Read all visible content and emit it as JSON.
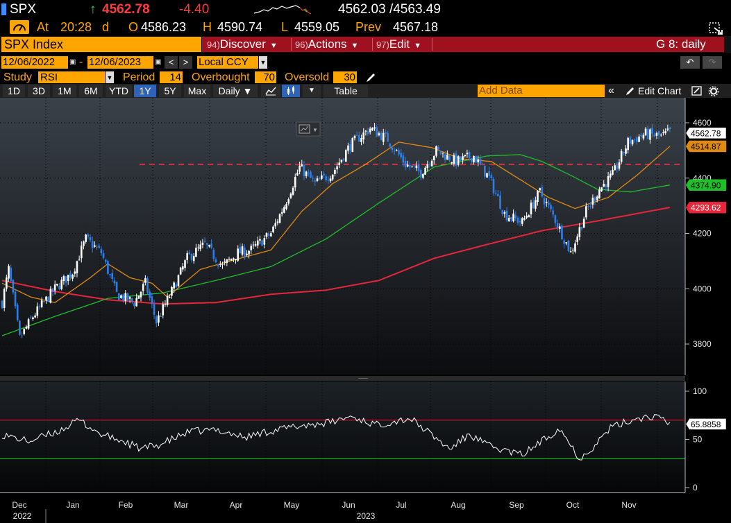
{
  "quote": {
    "ticker": "SPX",
    "arrow": "↑",
    "last": "4562.78",
    "change": "-4.40",
    "bid_ask": "4562.03 /4563.49",
    "at_label": "At",
    "time": "20:28",
    "time_suffix": "d",
    "open_label": "O",
    "open": "4586.23",
    "high_label": "H",
    "high": "4590.74",
    "low_label": "L",
    "low": "4559.05",
    "prev_label": "Prev",
    "prev": "4567.18"
  },
  "header": {
    "security": "SPX Index",
    "menus": [
      {
        "num": "94)",
        "label": "Discover"
      },
      {
        "num": "96)",
        "label": "Actions"
      },
      {
        "num": "97)",
        "label": "Edit"
      }
    ],
    "right_label": "G 8: daily"
  },
  "date_range": {
    "start": "12/06/2022",
    "separator": "-",
    "end": "12/06/2023",
    "currency": "Local CCY"
  },
  "study": {
    "label": "Study",
    "value": "RSI",
    "period_label": "Period",
    "period": "14",
    "overbought_label": "Overbought",
    "overbought": "70",
    "oversold_label": "Oversold",
    "oversold": "30"
  },
  "toolbar": {
    "ranges": [
      "1D",
      "3D",
      "1M",
      "6M",
      "YTD",
      "1Y",
      "5Y",
      "Max"
    ],
    "active_range": "1Y",
    "frequency": "Daily ▼",
    "table_label": "Table",
    "add_data_placeholder": "Add Data",
    "edit_chart_label": "Edit Chart"
  },
  "colors": {
    "accent_orange": "#ffa500",
    "menu_red": "#a0111f",
    "ma_orange": "#e08a12",
    "ma_green": "#1fbf2a",
    "ma_red": "#e8263a",
    "candle_up": "#ffffff",
    "candle_down": "#2f7ee8"
  },
  "chart_data": {
    "type": "candlestick",
    "price_axis": {
      "ticks": [
        "4600",
        "4400",
        "4200",
        "4000",
        "3800"
      ],
      "ylim": [
        3700,
        4640
      ]
    },
    "rsi_axis": {
      "ticks": [
        "100",
        "50",
        "0"
      ],
      "ylim": [
        0,
        100
      ],
      "overbought": 70,
      "oversold": 30
    },
    "x_month_labels": [
      "Dec",
      "Jan",
      "Feb",
      "Mar",
      "Apr",
      "May",
      "Jun",
      "Jul",
      "Aug",
      "Sep",
      "Oct",
      "Nov"
    ],
    "x_year_labels": [
      "2022",
      "2023"
    ],
    "resistance_level": 4450,
    "last_labels": [
      {
        "value": "4562.78",
        "series": "price"
      },
      {
        "value": "4514.87",
        "series": "ma_orange"
      },
      {
        "value": "4374.90",
        "series": "ma_green"
      },
      {
        "value": "4293.62",
        "series": "ma_red"
      },
      {
        "value": "65.8858",
        "series": "rsi"
      }
    ],
    "price_keypoints": [
      [
        0,
        3950
      ],
      [
        3,
        4070
      ],
      [
        8,
        3820
      ],
      [
        14,
        3900
      ],
      [
        24,
        4000
      ],
      [
        32,
        4060
      ],
      [
        38,
        4180
      ],
      [
        45,
        4130
      ],
      [
        52,
        3980
      ],
      [
        60,
        3950
      ],
      [
        65,
        4020
      ],
      [
        70,
        3880
      ],
      [
        77,
        3990
      ],
      [
        84,
        4110
      ],
      [
        92,
        4160
      ],
      [
        100,
        4080
      ],
      [
        107,
        4130
      ],
      [
        113,
        4140
      ],
      [
        122,
        4200
      ],
      [
        128,
        4300
      ],
      [
        135,
        4440
      ],
      [
        142,
        4380
      ],
      [
        150,
        4420
      ],
      [
        158,
        4520
      ],
      [
        167,
        4580
      ],
      [
        175,
        4540
      ],
      [
        183,
        4450
      ],
      [
        190,
        4420
      ],
      [
        197,
        4500
      ],
      [
        206,
        4460
      ],
      [
        214,
        4480
      ],
      [
        221,
        4400
      ],
      [
        228,
        4270
      ],
      [
        236,
        4240
      ],
      [
        244,
        4350
      ],
      [
        251,
        4250
      ],
      [
        258,
        4130
      ],
      [
        265,
        4280
      ],
      [
        271,
        4360
      ],
      [
        277,
        4410
      ],
      [
        284,
        4530
      ],
      [
        292,
        4560
      ],
      [
        299,
        4550
      ],
      [
        303,
        4567
      ]
    ],
    "ma_orange_keypoints": [
      [
        0,
        4020
      ],
      [
        13,
        3970
      ],
      [
        24,
        3950
      ],
      [
        40,
        4040
      ],
      [
        48,
        4090
      ],
      [
        58,
        4040
      ],
      [
        68,
        4020
      ],
      [
        75,
        3970
      ],
      [
        90,
        4070
      ],
      [
        108,
        4110
      ],
      [
        122,
        4140
      ],
      [
        136,
        4280
      ],
      [
        150,
        4380
      ],
      [
        165,
        4450
      ],
      [
        180,
        4530
      ],
      [
        195,
        4510
      ],
      [
        208,
        4470
      ],
      [
        222,
        4460
      ],
      [
        234,
        4400
      ],
      [
        248,
        4330
      ],
      [
        260,
        4290
      ],
      [
        275,
        4330
      ],
      [
        288,
        4410
      ],
      [
        303,
        4515
      ]
    ],
    "ma_green_keypoints": [
      [
        0,
        3830
      ],
      [
        24,
        3900
      ],
      [
        48,
        3965
      ],
      [
        73,
        3985
      ],
      [
        97,
        4030
      ],
      [
        122,
        4080
      ],
      [
        147,
        4180
      ],
      [
        171,
        4310
      ],
      [
        196,
        4440
      ],
      [
        220,
        4480
      ],
      [
        235,
        4485
      ],
      [
        245,
        4460
      ],
      [
        258,
        4410
      ],
      [
        270,
        4360
      ],
      [
        285,
        4350
      ],
      [
        303,
        4375
      ]
    ],
    "ma_red_keypoints": [
      [
        0,
        4030
      ],
      [
        24,
        3990
      ],
      [
        48,
        3960
      ],
      [
        73,
        3945
      ],
      [
        97,
        3950
      ],
      [
        122,
        3980
      ],
      [
        147,
        3995
      ],
      [
        171,
        4030
      ],
      [
        196,
        4110
      ],
      [
        220,
        4160
      ],
      [
        245,
        4210
      ],
      [
        270,
        4245
      ],
      [
        303,
        4294
      ]
    ],
    "rsi_keypoints": [
      [
        0,
        55
      ],
      [
        12,
        48
      ],
      [
        25,
        58
      ],
      [
        35,
        70
      ],
      [
        45,
        55
      ],
      [
        55,
        48
      ],
      [
        63,
        40
      ],
      [
        72,
        45
      ],
      [
        85,
        58
      ],
      [
        98,
        60
      ],
      [
        110,
        52
      ],
      [
        120,
        58
      ],
      [
        135,
        64
      ],
      [
        150,
        68
      ],
      [
        158,
        74
      ],
      [
        170,
        65
      ],
      [
        185,
        72
      ],
      [
        192,
        60
      ],
      [
        203,
        40
      ],
      [
        212,
        55
      ],
      [
        222,
        42
      ],
      [
        236,
        34
      ],
      [
        246,
        50
      ],
      [
        253,
        62
      ],
      [
        262,
        30
      ],
      [
        268,
        42
      ],
      [
        276,
        62
      ],
      [
        288,
        72
      ],
      [
        296,
        74
      ],
      [
        303,
        66
      ]
    ]
  }
}
